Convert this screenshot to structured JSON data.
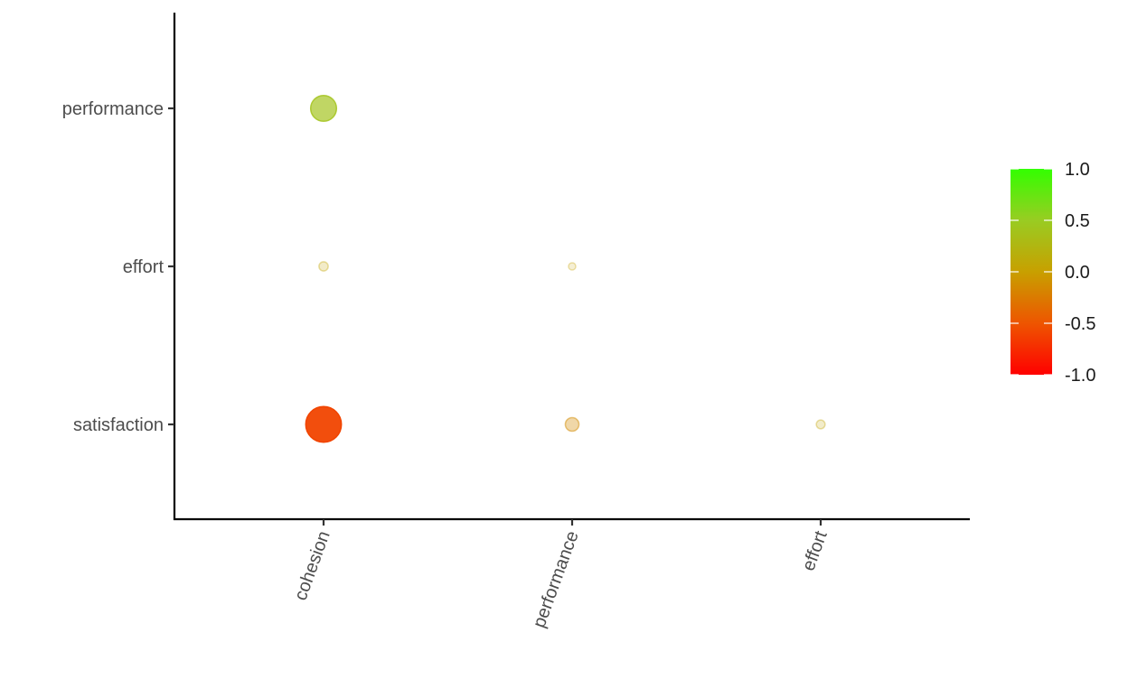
{
  "chart_data": {
    "type": "scatter",
    "subtype": "correlation-bubble",
    "title": "",
    "xlabel": "",
    "ylabel": "",
    "x_categories": [
      "cohesion",
      "performance",
      "effort"
    ],
    "y_categories": [
      "satisfaction",
      "effort",
      "performance"
    ],
    "points": [
      {
        "x": "cohesion",
        "y": "performance",
        "value": 0.4
      },
      {
        "x": "cohesion",
        "y": "effort",
        "value": 0.06
      },
      {
        "x": "performance",
        "y": "effort",
        "value": 0.02
      },
      {
        "x": "cohesion",
        "y": "satisfaction",
        "value": -0.6
      },
      {
        "x": "performance",
        "y": "satisfaction",
        "value": -0.15
      },
      {
        "x": "effort",
        "y": "satisfaction",
        "value": 0.05
      }
    ],
    "color_scale": {
      "low": "#ff0000",
      "mid": "#c8a000",
      "high": "#33ff00",
      "domain": [
        -1,
        1
      ],
      "ticks": [
        "1.0",
        "0.5",
        "0.0",
        "-0.5",
        "-1.0"
      ],
      "tick_values": [
        1,
        0.5,
        0,
        -0.5,
        -1
      ]
    },
    "legend_position": "right",
    "grid": false
  }
}
